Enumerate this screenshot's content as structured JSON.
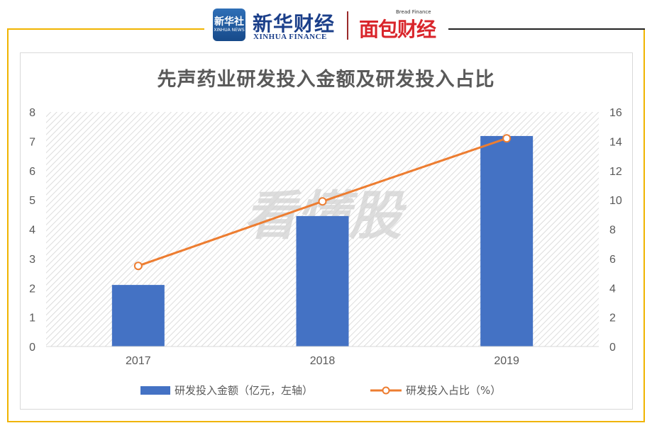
{
  "branding": {
    "logo_cn": "新华社",
    "logo_en": "XINHUA NEWS",
    "xinhua_cn": "新华财经",
    "xinhua_en": "XINHUA FINANCE",
    "bread_en": "Bread Finance",
    "bread_cn": "面包财经",
    "watermark": "看懂股"
  },
  "colors": {
    "bar": "#4472c4",
    "line": "#ed7d31",
    "frame": "#f0b400"
  },
  "chart_data": {
    "type": "bar",
    "title": "先声药业研发投入金额及研发投入占比",
    "categories": [
      "2017",
      "2018",
      "2019"
    ],
    "series": [
      {
        "name": "研发投入金额（亿元，左轴）",
        "type": "bar",
        "axis": "left",
        "values": [
          2.1,
          4.45,
          7.18
        ]
      },
      {
        "name": "研发投入占比（%）",
        "type": "line",
        "axis": "right",
        "values": [
          5.5,
          9.9,
          14.2
        ]
      }
    ],
    "y_left": {
      "min": 0,
      "max": 8,
      "ticks": [
        "0",
        "1",
        "2",
        "3",
        "4",
        "5",
        "6",
        "7",
        "8"
      ]
    },
    "y_right": {
      "min": 0,
      "max": 16,
      "ticks": [
        "0",
        "2",
        "4",
        "6",
        "8",
        "10",
        "12",
        "14",
        "16"
      ]
    },
    "legend_position": "bottom",
    "grid": false
  }
}
